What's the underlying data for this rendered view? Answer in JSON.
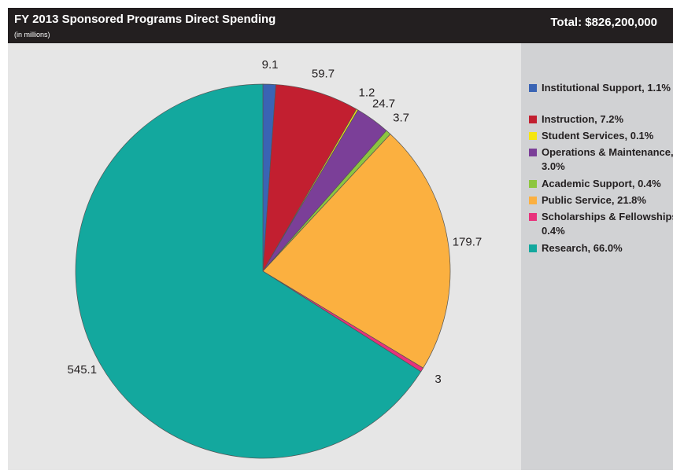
{
  "chart_data": {
    "type": "pie",
    "title": "FY 2013 Sponsored Programs Direct Spending",
    "subtitle": "(in millions)",
    "total": "Total: $826,200,000",
    "categories": [
      "Institutional Support, 1.1%",
      "Instruction, 7.2%",
      "Student Services, 0.1%",
      "Operations & Maintenance, 3.0%",
      "Academic Support, 0.4%",
      "Public Service, 21.8%",
      "Scholarships & Fellowships, 0.4%",
      "Research, 66.0%"
    ],
    "values": [
      9.1,
      59.7,
      1.2,
      24.7,
      3.7,
      179.7,
      3.0,
      545.1
    ],
    "colors": [
      "#3a64b4",
      "#c21f30",
      "#f5e610",
      "#7b3f98",
      "#8dc63f",
      "#fbb040",
      "#e8327c",
      "#13a89e"
    ],
    "legend": "right"
  }
}
